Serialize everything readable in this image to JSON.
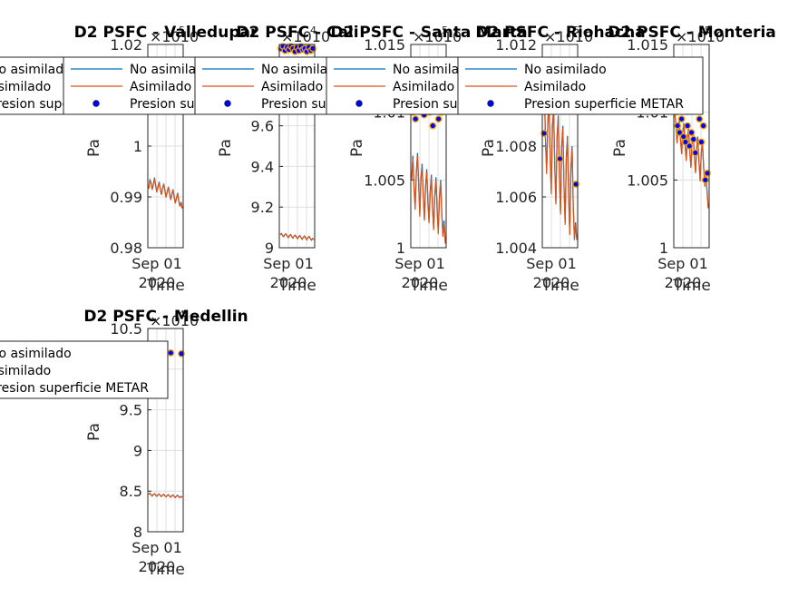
{
  "colors": {
    "no_asimilado": "#0072BD",
    "asimilado": "#D95319",
    "metar_fill": "#0000FF",
    "metar_edge": "#001a66",
    "grid": "#dfdfdf",
    "axis": "#262626"
  },
  "chart_data": [
    {
      "type": "line",
      "title": "D2 PSFC - Valledupar",
      "ylabel": "Pa",
      "xlabel": "Time",
      "x_ticks": [
        "Sep 01",
        "2020"
      ],
      "ylim": [
        98000,
        102000
      ],
      "y_ticks": [
        "0.98",
        "0.99",
        "1",
        "1.01",
        "1.02"
      ],
      "y_exponent": "×10^5",
      "legend": [
        "No asimilado",
        "Asimilado",
        "Presion superficie METAR"
      ],
      "legend_position": "top-left",
      "series": [
        {
          "name": "No asimilado",
          "values": [
            99180,
            99350,
            99280,
            99150,
            99250,
            99380,
            99220,
            99100,
            99200,
            99300,
            99150,
            99050,
            99180,
            99260,
            99120,
            99000,
            99100,
            99200,
            99080,
            98950,
            99050,
            99150,
            99000,
            98880,
            98980,
            99080,
            98920,
            98820,
            98900,
            98780
          ]
        },
        {
          "name": "Asimilado",
          "values": [
            99160,
            99330,
            99270,
            99140,
            99240,
            99360,
            99210,
            99090,
            99190,
            99290,
            99140,
            99040,
            99170,
            99250,
            99110,
            98990,
            99090,
            99190,
            99070,
            98940,
            99040,
            99140,
            98990,
            98870,
            98970,
            99070,
            98910,
            98810,
            98890,
            98770
          ]
        },
        {
          "name": "Presion superficie METAR",
          "values": []
        }
      ]
    },
    {
      "type": "line",
      "title": "D2 PSFC - Cali",
      "ylabel": "Pa",
      "xlabel": "Time",
      "x_ticks": [
        "Sep 01",
        "2020"
      ],
      "ylim": [
        90000,
        100000
      ],
      "y_ticks": [
        "9",
        "9.2",
        "9.4",
        "9.6"
      ],
      "y_exponent": "×10^4",
      "legend": [
        "No asimilado",
        "Asimilado",
        "Presion superficie METAR"
      ],
      "legend_position": "top-left",
      "series": [
        {
          "name": "No asimilado",
          "values": [
            90650,
            90700,
            90600,
            90550,
            90650,
            90680,
            90580,
            90500,
            90600,
            90650,
            90550,
            90480,
            90580,
            90620,
            90520,
            90450,
            90550,
            90600,
            90500,
            90420,
            90520,
            90580,
            90480,
            90400,
            90500,
            90560,
            90460,
            90380,
            90460,
            90400
          ]
        },
        {
          "name": "Asimilado",
          "values": [
            90640,
            90690,
            90590,
            90540,
            90640,
            90670,
            90570,
            90490,
            90590,
            90640,
            90540,
            90470,
            90570,
            90610,
            90510,
            90440,
            90540,
            90590,
            90490,
            90410,
            90510,
            90570,
            90470,
            90390,
            90490,
            90550,
            90450,
            90370,
            90450,
            90390
          ]
        },
        {
          "name": "Presion superficie METAR",
          "values": [
            99800,
            99900,
            99700,
            99850,
            99750,
            99900,
            99800,
            99650,
            99850,
            99700,
            99900,
            99750,
            99800,
            99650,
            99850,
            99700,
            99800
          ]
        }
      ]
    },
    {
      "type": "line",
      "title": "D2 PSFC - Santa Marta",
      "ylabel": "Pa",
      "xlabel": "Time",
      "x_ticks": [
        "Sep 01",
        "2020"
      ],
      "ylim": [
        100000,
        101500
      ],
      "y_ticks": [
        "1",
        "1.005",
        "1.01",
        "1.015"
      ],
      "y_exponent": "×10^5",
      "legend": [
        "No asimilado",
        "Asimilado",
        "Presion superficie METAR"
      ],
      "legend_position": "top-left",
      "series": [
        {
          "name": "No asimilado",
          "values": [
            100520,
            100680,
            100450,
            100300,
            100560,
            100700,
            100480,
            100250,
            100520,
            100620,
            100380,
            100220,
            100460,
            100580,
            100340,
            100200,
            100420,
            100540,
            100300,
            100150,
            100400,
            100520,
            100280,
            100120,
            100380,
            100500,
            100260,
            100100,
            100200,
            100050
          ]
        },
        {
          "name": "Asimilado",
          "values": [
            100500,
            100660,
            100430,
            100280,
            100540,
            100680,
            100460,
            100230,
            100500,
            100600,
            100360,
            100200,
            100440,
            100560,
            100320,
            100180,
            100400,
            100520,
            100280,
            100130,
            100380,
            100500,
            100260,
            100100,
            100360,
            100480,
            100240,
            100080,
            100180,
            100030
          ]
        },
        {
          "name": "Presion superficie METAR",
          "values": [
            101000,
            100950,
            101050,
            101020,
            100980,
            101100,
            101000,
            100900,
            101050,
            100950,
            101000,
            101080
          ]
        }
      ]
    },
    {
      "type": "line",
      "title": "D2 PSFC - Riohacha",
      "ylabel": "Pa",
      "xlabel": "Time",
      "x_ticks": [
        "Sep 01",
        "2020"
      ],
      "ylim": [
        100400,
        101200
      ],
      "y_ticks": [
        "1.004",
        "1.006",
        "1.008",
        "1.01",
        "1.012"
      ],
      "y_exponent": "×10^5",
      "legend": [
        "No asimilado",
        "Asimilado",
        "Presion superficie METAR"
      ],
      "legend_position": "top-left",
      "series": [
        {
          "name": "No asimilado",
          "values": [
            100950,
            101020,
            100820,
            100700,
            100900,
            100980,
            100760,
            100620,
            100880,
            100950,
            100720,
            100580,
            100840,
            100920,
            100680,
            100540,
            100800,
            100880,
            100640,
            100500,
            100760,
            100840,
            100600,
            100460,
            100720,
            100800,
            100560,
            100440,
            100500,
            100440
          ]
        },
        {
          "name": "Asimilado",
          "values": [
            100940,
            101010,
            100810,
            100690,
            100890,
            100970,
            100750,
            100610,
            100870,
            100940,
            100710,
            100570,
            100830,
            100910,
            100670,
            100530,
            100790,
            100870,
            100630,
            100490,
            100750,
            100830,
            100590,
            100450,
            100710,
            100790,
            100550,
            100430,
            100490,
            100430
          ]
        },
        {
          "name": "Presion superficie METAR",
          "values": [
            100850,
            100750,
            100650
          ]
        }
      ]
    },
    {
      "type": "line",
      "title": "D2 PSFC - Monteria",
      "ylabel": "Pa",
      "xlabel": "Time",
      "x_ticks": [
        "Sep 01",
        "2020"
      ],
      "ylim": [
        100000,
        101500
      ],
      "y_ticks": [
        "1",
        "1.005",
        "1.01",
        "1.015"
      ],
      "y_exponent": "×10^5",
      "legend": [
        "No asimilado",
        "Asimilado",
        "Presion superficie METAR"
      ],
      "legend_position": "top-left",
      "series": [
        {
          "name": "No asimilado",
          "values": [
            101000,
            100920,
            100780,
            100880,
            100950,
            100800,
            100700,
            100860,
            100920,
            100760,
            100650,
            100820,
            100880,
            100720,
            100600,
            100780,
            100850,
            100680,
            100560,
            100740,
            100820,
            100640,
            100500,
            100700,
            100780,
            100600,
            100460,
            100560,
            100420,
            100300
          ]
        },
        {
          "name": "Asimilado",
          "values": [
            100990,
            100910,
            100770,
            100870,
            100940,
            100790,
            100690,
            100850,
            100910,
            100750,
            100640,
            100810,
            100870,
            100710,
            100590,
            100770,
            100840,
            100670,
            100550,
            100730,
            100810,
            100630,
            100490,
            100690,
            100770,
            100590,
            100450,
            100550,
            100410,
            100290
          ]
        },
        {
          "name": "Presion superficie METAR",
          "values": [
            101000,
            100900,
            100850,
            100950,
            100820,
            100780,
            100900,
            100750,
            100850,
            100800,
            100700,
            101050,
            100950,
            100780,
            100900,
            100500,
            100550
          ]
        }
      ]
    },
    {
      "type": "line",
      "title": "D2 PSFC - Medellin",
      "ylabel": "Pa",
      "xlabel": "Time",
      "x_ticks": [
        "Sep 01",
        "2020"
      ],
      "ylim": [
        80000,
        105000
      ],
      "y_ticks": [
        "8",
        "8.5",
        "9",
        "9.5",
        "10",
        "10.5"
      ],
      "y_exponent": "×10^4",
      "legend": [
        "No asimilado",
        "Asimilado",
        "Presion superficie METAR"
      ],
      "legend_position": "top-left",
      "series": [
        {
          "name": "No asimilado",
          "values": [
            84600,
            84750,
            84550,
            84400,
            84600,
            84700,
            84500,
            84380,
            84560,
            84650,
            84460,
            84340,
            84520,
            84620,
            84420,
            84300,
            84480,
            84580,
            84380,
            84260,
            84440,
            84540,
            84340,
            84220,
            84400,
            84500,
            84300,
            84200,
            84350,
            84250
          ]
        },
        {
          "name": "Asimilado",
          "values": [
            84580,
            84730,
            84530,
            84380,
            84580,
            84680,
            84480,
            84360,
            84540,
            84630,
            84440,
            84320,
            84500,
            84600,
            84400,
            84280,
            84460,
            84560,
            84360,
            84240,
            84420,
            84520,
            84320,
            84200,
            84380,
            84480,
            84280,
            84180,
            84330,
            84230
          ]
        },
        {
          "name": "Presion superficie METAR",
          "values": [
            102300,
            102150,
            102000,
            101900
          ]
        }
      ]
    }
  ]
}
